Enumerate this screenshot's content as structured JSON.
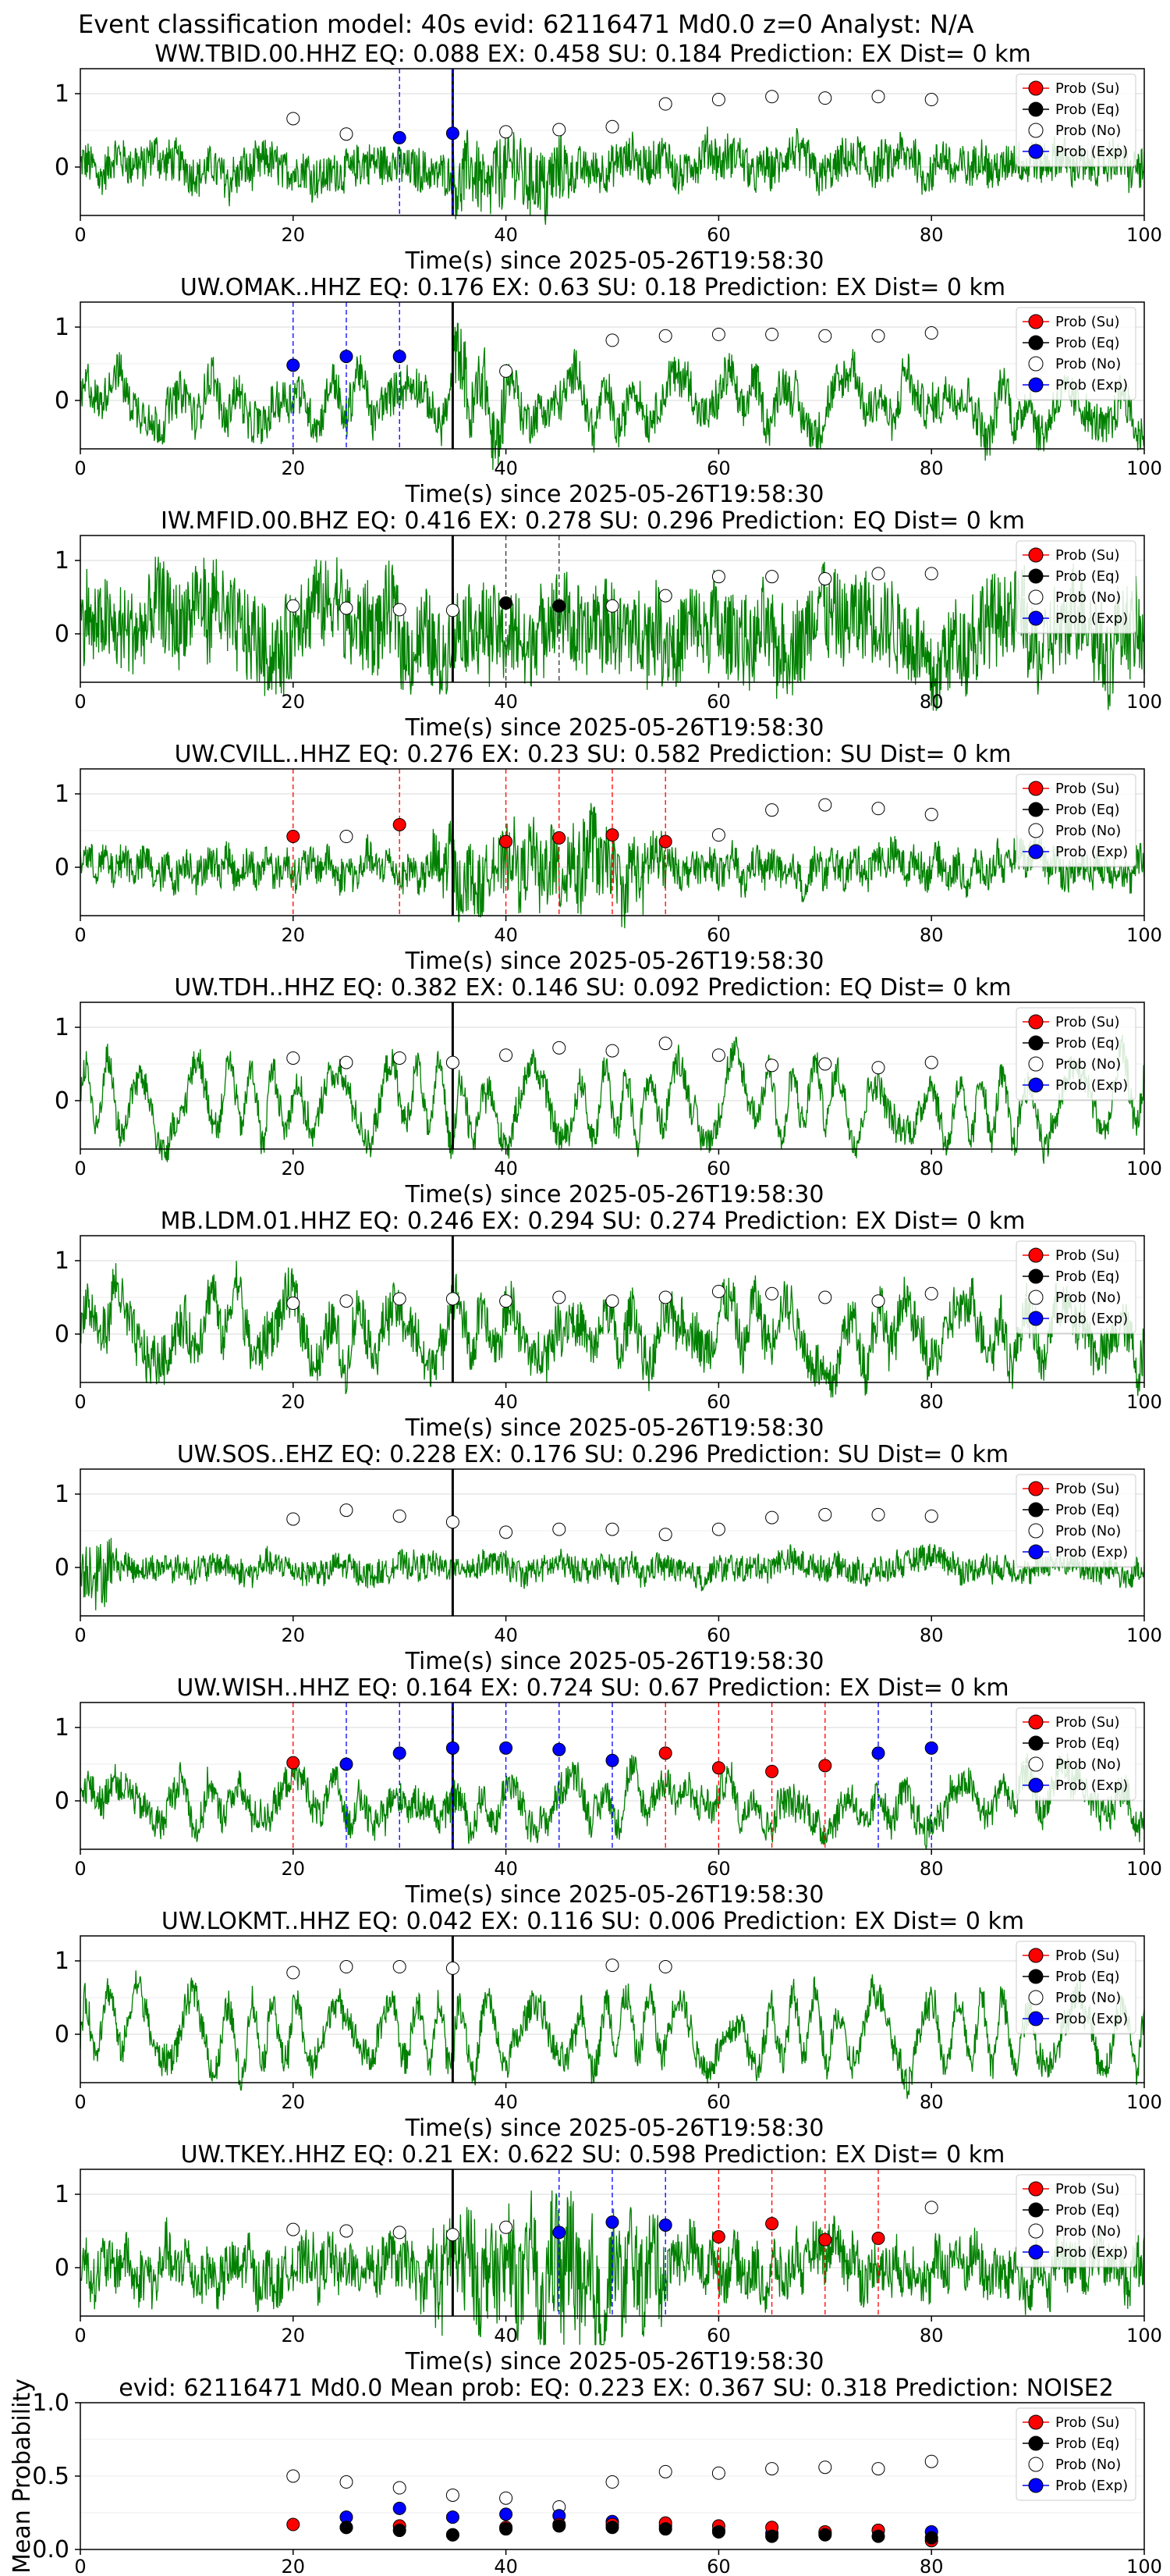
{
  "suptitle": "Event classification model: 40s evid: 62116471 Md0.0 z=0 Analyst: N/A",
  "colors": {
    "waveform": "#008000",
    "su": "#ff0000",
    "eq": "#000000",
    "no": "#ffffff",
    "exp": "#0000ff",
    "arrival": "#000000",
    "grid": "#d9d9d9"
  },
  "legend": [
    "Prob (Su)",
    "Prob (Eq)",
    "Prob (No)",
    "Prob (Exp)"
  ],
  "chart_data": [
    {
      "type": "scatter",
      "title": "WW.TBID.00.HHZ   EQ: 0.088  EX: 0.458  SU: 0.184   Prediction: EX    Dist= 0 km",
      "xlabel": "Time(s) since 2025-05-26T19:58:30",
      "xlim": [
        0,
        100
      ],
      "yticks": [
        "1",
        "0"
      ],
      "xticks": [
        "0",
        "20",
        "40",
        "60",
        "80",
        "100"
      ],
      "arrival": 35,
      "amp": 0.35,
      "style": "hf",
      "su": [],
      "eq": [],
      "exp": [
        [
          30,
          0.4
        ],
        [
          35,
          0.46
        ]
      ],
      "no": [
        [
          20,
          0.66
        ],
        [
          25,
          0.45
        ],
        [
          40,
          0.48
        ],
        [
          45,
          0.51
        ],
        [
          50,
          0.55
        ],
        [
          55,
          0.86
        ],
        [
          60,
          0.92
        ],
        [
          65,
          0.96
        ],
        [
          70,
          0.94
        ],
        [
          75,
          0.96
        ],
        [
          80,
          0.92
        ]
      ]
    },
    {
      "type": "scatter",
      "title": "UW.OMAK..HHZ   EQ: 0.176  EX: 0.63  SU: 0.18   Prediction: EX    Dist= 0 km",
      "xlabel": "Time(s) since 2025-05-26T19:58:30",
      "xlim": [
        0,
        100
      ],
      "yticks": [
        "1",
        "0"
      ],
      "xticks": [
        "0",
        "20",
        "40",
        "60",
        "80",
        "100"
      ],
      "arrival": 35,
      "amp": 0.55,
      "style": "mix",
      "su": [],
      "eq": [],
      "exp": [
        [
          20,
          0.48
        ],
        [
          25,
          0.6
        ],
        [
          30,
          0.6
        ]
      ],
      "no": [
        [
          40,
          0.4
        ],
        [
          50,
          0.82
        ],
        [
          55,
          0.88
        ],
        [
          60,
          0.9
        ],
        [
          65,
          0.9
        ],
        [
          70,
          0.88
        ],
        [
          75,
          0.88
        ],
        [
          80,
          0.92
        ]
      ]
    },
    {
      "type": "scatter",
      "title": "IW.MFID.00.BHZ   EQ: 0.416  EX: 0.278  SU: 0.296   Prediction: EQ    Dist= 0 km",
      "xlabel": "Time(s) since 2025-05-26T19:58:30",
      "xlim": [
        0,
        100
      ],
      "yticks": [
        "1",
        "0"
      ],
      "xticks": [
        "0",
        "20",
        "40",
        "60",
        "80",
        "100"
      ],
      "arrival": 35,
      "amp": 0.75,
      "style": "hf",
      "su": [],
      "eq": [
        [
          40,
          0.42
        ],
        [
          45,
          0.38
        ]
      ],
      "exp": [],
      "no": [
        [
          20,
          0.38
        ],
        [
          25,
          0.35
        ],
        [
          30,
          0.33
        ],
        [
          35,
          0.32
        ],
        [
          50,
          0.38
        ],
        [
          55,
          0.52
        ],
        [
          60,
          0.78
        ],
        [
          65,
          0.78
        ],
        [
          70,
          0.75
        ],
        [
          75,
          0.82
        ],
        [
          80,
          0.82
        ]
      ]
    },
    {
      "type": "scatter",
      "title": "UW.CVILL..HHZ   EQ: 0.276  EX: 0.23  SU: 0.582   Prediction: SU    Dist= 0 km",
      "xlabel": "Time(s) since 2025-05-26T19:58:30",
      "xlim": [
        0,
        100
      ],
      "yticks": [
        "1",
        "0"
      ],
      "xticks": [
        "0",
        "20",
        "40",
        "60",
        "80",
        "100"
      ],
      "arrival": 35,
      "amp": 0.4,
      "style": "burst",
      "su": [
        [
          20,
          0.42
        ],
        [
          30,
          0.58
        ],
        [
          40,
          0.35
        ],
        [
          45,
          0.4
        ],
        [
          50,
          0.44
        ],
        [
          55,
          0.35
        ]
      ],
      "eq": [],
      "exp": [],
      "no": [
        [
          25,
          0.42
        ],
        [
          60,
          0.44
        ],
        [
          65,
          0.78
        ],
        [
          70,
          0.85
        ],
        [
          75,
          0.8
        ],
        [
          80,
          0.72
        ]
      ]
    },
    {
      "type": "scatter",
      "title": "UW.TDH..HHZ   EQ: 0.382  EX: 0.146  SU: 0.092   Prediction: EQ    Dist= 0 km",
      "xlabel": "Time(s) since 2025-05-26T19:58:30",
      "xlim": [
        0,
        100
      ],
      "yticks": [
        "1",
        "0"
      ],
      "xticks": [
        "0",
        "20",
        "40",
        "60",
        "80",
        "100"
      ],
      "arrival": 35,
      "amp": 0.6,
      "style": "lf",
      "su": [],
      "eq": [],
      "exp": [],
      "no": [
        [
          20,
          0.58
        ],
        [
          25,
          0.52
        ],
        [
          30,
          0.58
        ],
        [
          35,
          0.52
        ],
        [
          40,
          0.62
        ],
        [
          45,
          0.72
        ],
        [
          50,
          0.68
        ],
        [
          55,
          0.78
        ],
        [
          60,
          0.62
        ],
        [
          65,
          0.48
        ],
        [
          70,
          0.5
        ],
        [
          75,
          0.45
        ],
        [
          80,
          0.52
        ]
      ]
    },
    {
      "type": "scatter",
      "title": "MB.LDM.01.HHZ   EQ: 0.246  EX: 0.294  SU: 0.274   Prediction: EX    Dist= 0 km",
      "xlabel": "Time(s) since 2025-05-26T19:58:30",
      "xlim": [
        0,
        100
      ],
      "yticks": [
        "1",
        "0"
      ],
      "xticks": [
        "0",
        "20",
        "40",
        "60",
        "80",
        "100"
      ],
      "arrival": 35,
      "amp": 0.65,
      "style": "mix",
      "su": [],
      "eq": [],
      "exp": [],
      "no": [
        [
          20,
          0.42
        ],
        [
          25,
          0.45
        ],
        [
          30,
          0.48
        ],
        [
          35,
          0.48
        ],
        [
          40,
          0.45
        ],
        [
          45,
          0.5
        ],
        [
          50,
          0.45
        ],
        [
          55,
          0.5
        ],
        [
          60,
          0.58
        ],
        [
          65,
          0.55
        ],
        [
          70,
          0.5
        ],
        [
          75,
          0.45
        ],
        [
          80,
          0.55
        ]
      ]
    },
    {
      "type": "scatter",
      "title": "UW.SOS..EHZ   EQ: 0.228  EX: 0.176  SU: 0.296   Prediction: SU    Dist= 0 km",
      "xlabel": "Time(s) since 2025-05-26T19:58:30",
      "xlim": [
        0,
        100
      ],
      "yticks": [
        "1",
        "0"
      ],
      "xticks": [
        "0",
        "20",
        "40",
        "60",
        "80",
        "100"
      ],
      "arrival": 35,
      "amp": 0.22,
      "style": "hf",
      "su": [],
      "eq": [],
      "exp": [],
      "no": [
        [
          20,
          0.66
        ],
        [
          25,
          0.78
        ],
        [
          30,
          0.7
        ],
        [
          35,
          0.62
        ],
        [
          40,
          0.48
        ],
        [
          45,
          0.52
        ],
        [
          50,
          0.52
        ],
        [
          55,
          0.45
        ],
        [
          60,
          0.52
        ],
        [
          65,
          0.68
        ],
        [
          70,
          0.72
        ],
        [
          75,
          0.72
        ],
        [
          80,
          0.7
        ]
      ]
    },
    {
      "type": "scatter",
      "title": "UW.WISH..HHZ   EQ: 0.164  EX: 0.724  SU: 0.67   Prediction: EX    Dist= 0 km",
      "xlabel": "Time(s) since 2025-05-26T19:58:30",
      "xlim": [
        0,
        100
      ],
      "yticks": [
        "1",
        "0"
      ],
      "xticks": [
        "0",
        "20",
        "40",
        "60",
        "80",
        "100"
      ],
      "arrival": 35,
      "amp": 0.45,
      "style": "mix",
      "su": [
        [
          20,
          0.52
        ],
        [
          55,
          0.65
        ],
        [
          60,
          0.45
        ],
        [
          65,
          0.4
        ],
        [
          70,
          0.48
        ]
      ],
      "eq": [],
      "exp": [
        [
          25,
          0.5
        ],
        [
          30,
          0.65
        ],
        [
          35,
          0.72
        ],
        [
          40,
          0.72
        ],
        [
          45,
          0.7
        ],
        [
          50,
          0.55
        ],
        [
          75,
          0.65
        ],
        [
          80,
          0.72
        ]
      ],
      "no": []
    },
    {
      "type": "scatter",
      "title": "UW.LOKMT..HHZ   EQ: 0.042  EX: 0.116  SU: 0.006   Prediction: EX    Dist= 0 km",
      "xlabel": "Time(s) since 2025-05-26T19:58:30",
      "xlim": [
        0,
        100
      ],
      "yticks": [
        "1",
        "0"
      ],
      "xticks": [
        "0",
        "20",
        "40",
        "60",
        "80",
        "100"
      ],
      "arrival": 35,
      "amp": 0.6,
      "style": "lf",
      "su": [],
      "eq": [],
      "exp": [],
      "no": [
        [
          20,
          0.84
        ],
        [
          25,
          0.92
        ],
        [
          30,
          0.92
        ],
        [
          35,
          0.9
        ],
        [
          50,
          0.94
        ],
        [
          55,
          0.92
        ]
      ]
    },
    {
      "type": "scatter",
      "title": "UW.TKEY..HHZ   EQ: 0.21  EX: 0.622  SU: 0.598   Prediction: EX    Dist= 0 km",
      "xlabel": "Time(s) since 2025-05-26T19:58:30",
      "xlim": [
        0,
        100
      ],
      "yticks": [
        "1",
        "0"
      ],
      "xticks": [
        "0",
        "20",
        "40",
        "60",
        "80",
        "100"
      ],
      "arrival": 35,
      "amp": 0.6,
      "style": "burst",
      "su": [
        [
          60,
          0.42
        ],
        [
          65,
          0.6
        ],
        [
          70,
          0.38
        ],
        [
          75,
          0.4
        ]
      ],
      "eq": [],
      "exp": [
        [
          45,
          0.48
        ],
        [
          50,
          0.62
        ],
        [
          55,
          0.58
        ]
      ],
      "no": [
        [
          20,
          0.52
        ],
        [
          25,
          0.5
        ],
        [
          30,
          0.48
        ],
        [
          35,
          0.45
        ],
        [
          40,
          0.55
        ],
        [
          80,
          0.82
        ]
      ]
    }
  ],
  "mean_chart": {
    "type": "scatter",
    "title": "evid: 62116471  Md0.0   Mean prob:   EQ: 0.223  EX: 0.367  SU: 0.318   Prediction: NOISE2",
    "ylabel": "Mean Probability",
    "xlim": [
      0,
      100
    ],
    "ylim": [
      0,
      1
    ],
    "yticks": [
      "1.0",
      "0.5",
      "0.0"
    ],
    "xticks": [
      "0",
      "20",
      "40",
      "60",
      "80",
      "100"
    ],
    "no": [
      [
        20,
        0.5
      ],
      [
        25,
        0.46
      ],
      [
        30,
        0.42
      ],
      [
        35,
        0.37
      ],
      [
        40,
        0.35
      ],
      [
        45,
        0.29
      ],
      [
        50,
        0.46
      ],
      [
        55,
        0.53
      ],
      [
        60,
        0.52
      ],
      [
        65,
        0.55
      ],
      [
        70,
        0.56
      ],
      [
        75,
        0.55
      ],
      [
        80,
        0.6
      ]
    ],
    "exp": [
      [
        25,
        0.22
      ],
      [
        30,
        0.28
      ],
      [
        35,
        0.22
      ],
      [
        40,
        0.24
      ],
      [
        45,
        0.23
      ],
      [
        50,
        0.19
      ],
      [
        55,
        0.16
      ],
      [
        60,
        0.13
      ],
      [
        65,
        0.11
      ],
      [
        70,
        0.11
      ],
      [
        75,
        0.13
      ],
      [
        80,
        0.12
      ]
    ],
    "su": [
      [
        20,
        0.17
      ],
      [
        25,
        0.15
      ],
      [
        30,
        0.16
      ],
      [
        35,
        0.1
      ],
      [
        40,
        0.15
      ],
      [
        45,
        0.17
      ],
      [
        50,
        0.17
      ],
      [
        55,
        0.18
      ],
      [
        60,
        0.16
      ],
      [
        65,
        0.15
      ],
      [
        70,
        0.12
      ],
      [
        75,
        0.13
      ],
      [
        80,
        0.06
      ]
    ],
    "eq": [
      [
        25,
        0.15
      ],
      [
        30,
        0.13
      ],
      [
        35,
        0.1
      ],
      [
        40,
        0.14
      ],
      [
        45,
        0.16
      ],
      [
        50,
        0.15
      ],
      [
        55,
        0.14
      ],
      [
        60,
        0.12
      ],
      [
        65,
        0.09
      ],
      [
        70,
        0.1
      ],
      [
        75,
        0.09
      ],
      [
        80,
        0.08
      ]
    ]
  }
}
